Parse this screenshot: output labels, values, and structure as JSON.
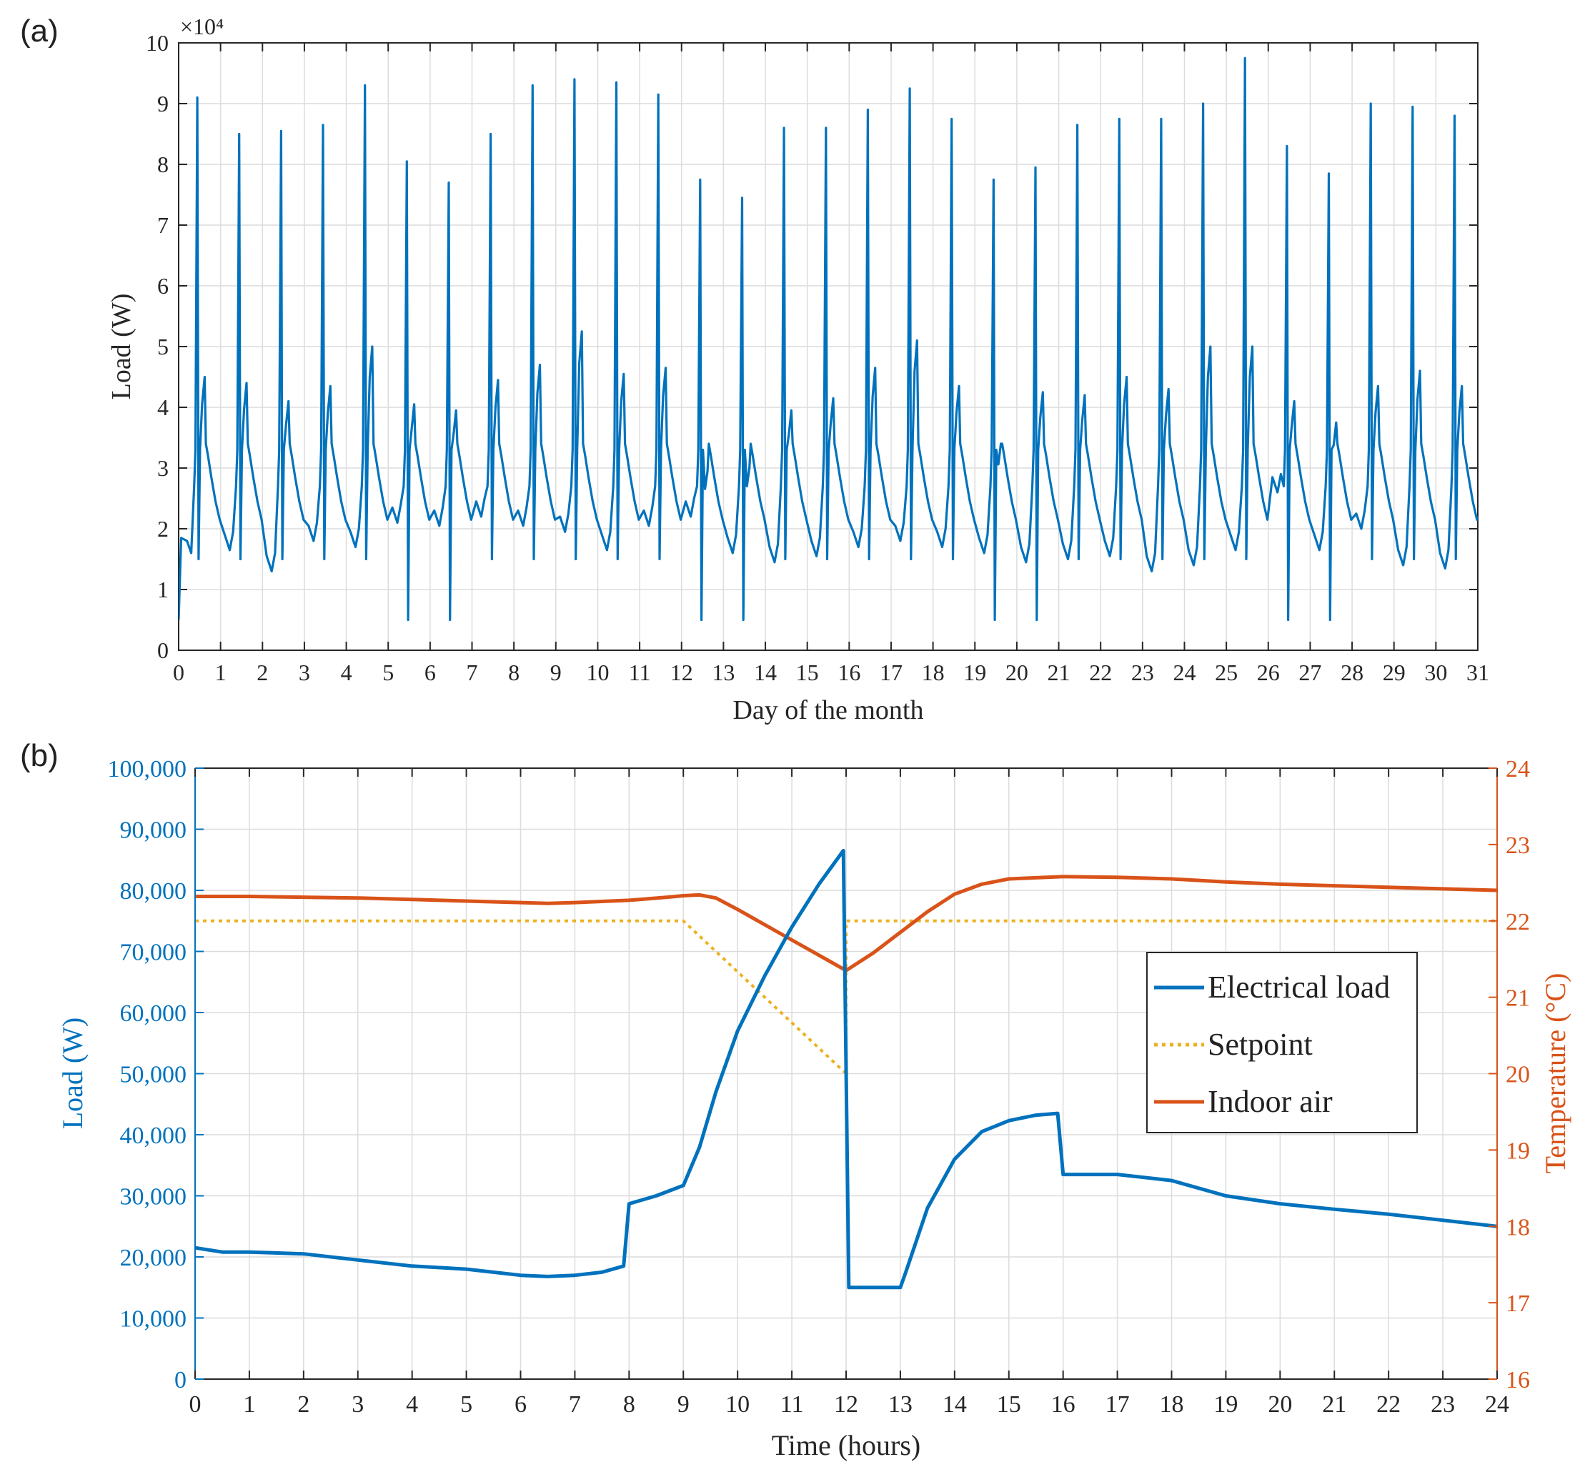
{
  "colors": {
    "load": "#0072BD",
    "indoor": "#D95319",
    "setpoint": "#EDB120",
    "axis": "#262626",
    "grid": "#dcdcdc"
  },
  "chart_data": [
    {
      "id": "a",
      "panel_label": "(a)",
      "type": "line",
      "xlabel": "Day of the month",
      "ylabel": "Load (W)",
      "exponent_label": "×10⁴",
      "xlim": [
        0,
        31
      ],
      "ylim": [
        0,
        10
      ],
      "x_ticks": [
        0,
        1,
        2,
        3,
        4,
        5,
        6,
        7,
        8,
        9,
        10,
        11,
        12,
        13,
        14,
        15,
        16,
        17,
        18,
        19,
        20,
        21,
        22,
        23,
        24,
        25,
        26,
        27,
        28,
        29,
        30,
        31
      ],
      "y_ticks": [
        0,
        1,
        2,
        3,
        4,
        5,
        6,
        7,
        8,
        9,
        10
      ],
      "daily_first_peak": [
        9.1,
        8.5,
        8.55,
        8.65,
        9.3,
        8.05,
        7.7,
        8.5,
        9.3,
        9.4,
        9.35,
        9.15,
        7.75,
        7.45,
        8.6,
        8.6,
        8.9,
        9.25,
        8.75,
        7.75,
        7.95,
        8.65,
        8.75,
        8.75,
        9.0,
        9.75,
        8.3,
        7.85,
        9.0,
        8.95,
        8.8
      ],
      "daily_second_peak": [
        4.5,
        4.4,
        4.1,
        4.35,
        5.0,
        4.05,
        3.95,
        4.45,
        4.7,
        5.25,
        4.55,
        4.65,
        2.95,
        3.0,
        3.95,
        4.15,
        4.65,
        5.1,
        4.35,
        3.4,
        4.25,
        4.2,
        4.5,
        4.3,
        5.0,
        5.0,
        4.1,
        3.75,
        4.35,
        4.6,
        4.35
      ],
      "daily_min": [
        1.65,
        1.3,
        1.8,
        1.7,
        2.1,
        2.05,
        2.2,
        2.05,
        1.95,
        1.65,
        2.05,
        2.2,
        1.6,
        1.45,
        1.55,
        1.7,
        1.8,
        1.7,
        1.6,
        1.45,
        1.5,
        1.55,
        1.3,
        1.4,
        1.65,
        2.6,
        1.65,
        2.0,
        1.4,
        1.35,
        2.2
      ],
      "daily_dip": [
        1.5,
        1.5,
        1.5,
        1.5,
        1.5,
        0.5,
        0.5,
        1.5,
        1.5,
        1.5,
        1.5,
        1.5,
        0.5,
        0.5,
        1.5,
        1.5,
        1.5,
        1.5,
        1.5,
        0.5,
        0.5,
        1.5,
        1.5,
        1.5,
        1.5,
        1.5,
        0.5,
        0.5,
        1.5,
        1.5,
        1.5
      ],
      "start_value": 0.5,
      "series": [
        {
          "name": "Electrical load",
          "color": "#0072BD"
        }
      ]
    },
    {
      "id": "b",
      "panel_label": "(b)",
      "type": "line",
      "xlabel": "Time (hours)",
      "ylabel_left": "Load (W)",
      "ylabel_right": "Temperature (°C)",
      "xlim": [
        0,
        24
      ],
      "ylim_left": [
        0,
        100000
      ],
      "ylim_right": [
        16,
        24
      ],
      "x_ticks": [
        0,
        1,
        2,
        3,
        4,
        5,
        6,
        7,
        8,
        9,
        10,
        11,
        12,
        13,
        14,
        15,
        16,
        17,
        18,
        19,
        20,
        21,
        22,
        23,
        24
      ],
      "y_ticks_left": [
        "0",
        "10,000",
        "20,000",
        "30,000",
        "40,000",
        "50,000",
        "60,000",
        "70,000",
        "80,000",
        "90,000",
        "100,000"
      ],
      "y_ticks_left_values": [
        0,
        10000,
        20000,
        30000,
        40000,
        50000,
        60000,
        70000,
        80000,
        90000,
        100000
      ],
      "y_ticks_right": [
        16,
        17,
        18,
        19,
        20,
        21,
        22,
        23,
        24
      ],
      "legend": [
        "Electrical load",
        "Setpoint",
        "Indoor air"
      ],
      "series": [
        {
          "name": "Electrical load",
          "axis": "left",
          "color": "#0072BD",
          "x": [
            0,
            0.5,
            1,
            2,
            3,
            4,
            5,
            6,
            6.5,
            7,
            7.5,
            7.9,
            8,
            8.5,
            9,
            9.3,
            9.6,
            10,
            10.5,
            11,
            11.5,
            11.95,
            12.05,
            12.1,
            13,
            13.1,
            13.5,
            14,
            14.5,
            15,
            15.5,
            15.9,
            16,
            16.5,
            17,
            17.5,
            18,
            19,
            20,
            21,
            22,
            23,
            24
          ],
          "y": [
            21500,
            20800,
            20800,
            20500,
            19500,
            18500,
            18000,
            17000,
            16800,
            17000,
            17500,
            18500,
            28700,
            30000,
            31700,
            38000,
            47000,
            57000,
            66000,
            74000,
            81000,
            86500,
            15000,
            15000,
            15000,
            17500,
            28000,
            36000,
            40500,
            42300,
            43200,
            43500,
            33500,
            33500,
            33500,
            33000,
            32500,
            30000,
            28700,
            27800,
            27000,
            26000,
            25000
          ]
        },
        {
          "name": "Setpoint",
          "axis": "right",
          "color": "#EDB120",
          "dash": "dotted",
          "x": [
            0,
            9,
            12,
            12,
            24
          ],
          "y": [
            22,
            22,
            20,
            22,
            22
          ]
        },
        {
          "name": "Indoor air",
          "axis": "right",
          "color": "#D95319",
          "x": [
            0,
            1,
            2,
            3,
            4,
            5,
            6,
            6.5,
            7,
            8,
            8.7,
            9,
            9.3,
            9.6,
            10,
            10.5,
            11,
            11.5,
            12,
            12.5,
            13,
            13.5,
            14,
            14.5,
            15,
            16,
            17,
            18,
            19,
            20,
            21,
            22,
            23,
            24
          ],
          "y": [
            22.32,
            22.32,
            22.31,
            22.3,
            22.28,
            22.26,
            22.24,
            22.23,
            22.24,
            22.27,
            22.31,
            22.33,
            22.34,
            22.3,
            22.15,
            21.95,
            21.75,
            21.55,
            21.35,
            21.58,
            21.85,
            22.12,
            22.35,
            22.48,
            22.55,
            22.58,
            22.57,
            22.55,
            22.51,
            22.48,
            22.46,
            22.44,
            22.42,
            22.4
          ]
        }
      ]
    }
  ]
}
